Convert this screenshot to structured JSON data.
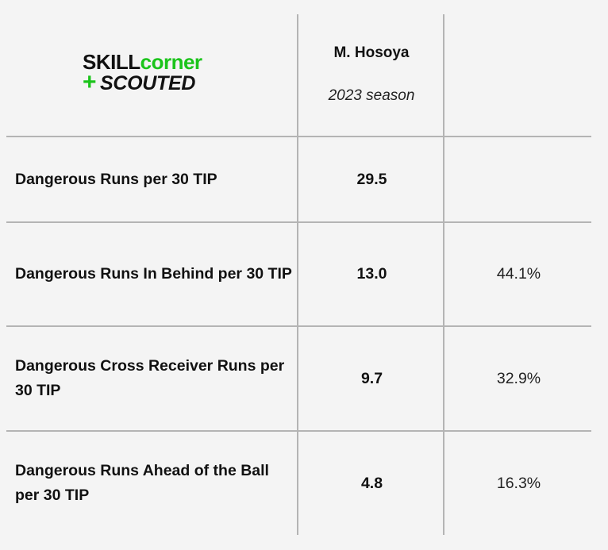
{
  "logo": {
    "line1_part1": "SKILL",
    "line1_part2": "corner",
    "line2_plus": "+",
    "line2_text": "SCOUTED",
    "colors": {
      "green": "#1bc41b",
      "dark": "#111111"
    }
  },
  "header": {
    "player": "M. Hosoya",
    "season": "2023 season"
  },
  "rows": [
    {
      "label": "Dangerous Runs per 30 TIP",
      "value": "29.5",
      "pct": ""
    },
    {
      "label": "Dangerous Runs In Behind per 30 TIP",
      "value": "13.0",
      "pct": "44.1%"
    },
    {
      "label": "Dangerous Cross Receiver Runs per 30 TIP",
      "value": "9.7",
      "pct": "32.9%"
    },
    {
      "label": "Dangerous Runs Ahead of the Ball per 30 TIP",
      "value": "4.8",
      "pct": "16.3%"
    }
  ],
  "colors": {
    "background": "#f4f4f4",
    "grid": "#b4b4b4",
    "text": "#111111"
  }
}
